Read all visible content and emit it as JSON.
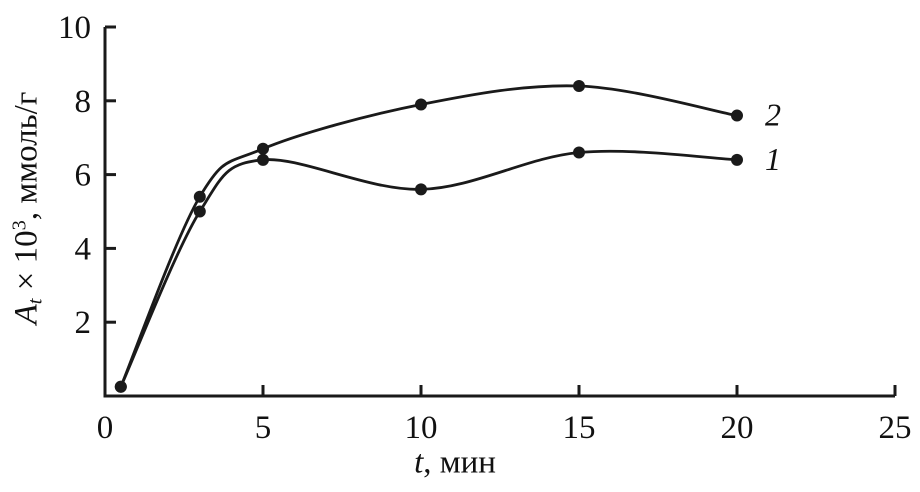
{
  "chart_data": {
    "type": "line",
    "title": "",
    "xlabel_italic": "t",
    "xlabel_rest": ", мин",
    "ylabel_var": "A",
    "ylabel_sub": "t",
    "ylabel_mult": " × 10",
    "ylabel_sup": "3",
    "ylabel_rest": ", ммоль/г",
    "xlim": [
      0,
      25
    ],
    "ylim": [
      0,
      10
    ],
    "xticks": [
      0,
      5,
      10,
      15,
      20,
      25
    ],
    "yticks": [
      2,
      4,
      6,
      8,
      10
    ],
    "grid": false,
    "legend_position": "end-of-line-labels",
    "line_color": "#1a1a1a",
    "background": "#ffffff",
    "series": [
      {
        "name": "1",
        "x": [
          0.5,
          3,
          5,
          10,
          15,
          20
        ],
        "y": [
          0.25,
          5.0,
          6.4,
          5.6,
          6.6,
          6.4
        ]
      },
      {
        "name": "2",
        "x": [
          0.5,
          3,
          5,
          10,
          15,
          20
        ],
        "y": [
          0.25,
          5.4,
          6.7,
          7.9,
          8.4,
          7.6
        ]
      }
    ]
  }
}
